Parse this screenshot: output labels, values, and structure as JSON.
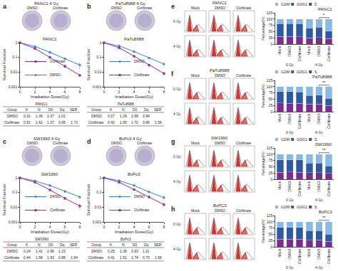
{
  "chart_data": [
    {
      "type": "line",
      "panel": "a",
      "image_title": "PANC1 4 Gy",
      "image_labels": [
        "DMSO",
        "Clofibrate"
      ],
      "title": "PANC1",
      "x": [
        0,
        2,
        4,
        6,
        8
      ],
      "series": [
        {
          "name": "DMSO",
          "color": "#3b7dd8",
          "marker": "circle",
          "values": [
            1,
            0.55,
            0.22,
            0.08,
            0.03
          ],
          "errors": [
            0,
            0.05,
            0.02,
            0.01,
            0.012
          ]
        },
        {
          "name": "Clofibrate",
          "color": "#8e2c9c",
          "marker": "square",
          "values": [
            1,
            0.4,
            0.1,
            0.025,
            0.006
          ],
          "errors": [
            0,
            0.04,
            0.01,
            0.004,
            0.001
          ]
        }
      ],
      "xlabel": "Irradiation Dose(Gy)",
      "ylabel": "Survival Fraction",
      "xlim": [
        0,
        8
      ],
      "xticks": [
        0,
        2,
        4,
        6,
        8
      ],
      "ylim": [
        0.001,
        1
      ],
      "yticks": [
        0.001,
        0.01,
        0.1,
        1
      ],
      "log": "y",
      "legend": "lower left",
      "table": {
        "title": "PANC1",
        "header": [
          "Group",
          "K",
          "N",
          "D0",
          "Dq",
          "SER"
        ],
        "rows": [
          [
            "DMSO",
            "0.31",
            "1.39",
            "2.37",
            "1.01"
          ],
          [
            "Clofibrate",
            "0.51",
            "1.62",
            "1.37",
            "0.65",
            "1.73"
          ]
        ]
      }
    },
    {
      "type": "line",
      "panel": "b",
      "image_title": "PaTu8988 4 Gy",
      "image_labels": [
        "DMSO",
        "Clofibrate"
      ],
      "title": "PaTu8988",
      "x": [
        0,
        2,
        4,
        6,
        8
      ],
      "series": [
        {
          "name": "DMSO",
          "color": "#3b7dd8",
          "marker": "circle",
          "values": [
            1,
            0.6,
            0.25,
            0.09,
            0.035
          ],
          "errors": [
            0,
            0.05,
            0.02,
            0.01,
            0.006
          ]
        },
        {
          "name": "Clofibrate",
          "color": "#8e2c9c",
          "marker": "square",
          "values": [
            1,
            0.45,
            0.12,
            0.03,
            0.008
          ],
          "errors": [
            0,
            0.04,
            0.01,
            0.004,
            0.002
          ]
        }
      ],
      "xlabel": "Irradiation Dose(Gy)",
      "ylabel": "Survival Fraction",
      "xlim": [
        0,
        8
      ],
      "xticks": [
        0,
        2,
        4,
        6,
        8
      ],
      "ylim": [
        0.001,
        1
      ],
      "yticks": [
        0.001,
        0.01,
        0.1,
        1
      ],
      "log": "y",
      "legend": "lower left",
      "table": {
        "title": "PaTu8988",
        "header": [
          "Group",
          "K",
          "N",
          "D0",
          "Dq",
          "SER"
        ],
        "rows": [
          [
            "DMSO",
            "0.27",
            "1.29",
            "2.68",
            "0.94"
          ],
          [
            "Clofibrate",
            "0.42",
            "1.65",
            "1.72",
            "0.86",
            "1.56"
          ]
        ]
      }
    },
    {
      "type": "line",
      "panel": "c",
      "image_title": "SW1990 4 Gy",
      "image_labels": [
        "DMSO",
        "Clofibrate"
      ],
      "title": "SW1990",
      "x": [
        0,
        2,
        4,
        6,
        8
      ],
      "series": [
        {
          "name": "DMSO",
          "color": "#3b7dd8",
          "marker": "circle",
          "values": [
            1,
            0.62,
            0.3,
            0.12,
            0.05
          ],
          "errors": [
            0,
            0.05,
            0.03,
            0.015,
            0.01
          ]
        },
        {
          "name": "Clofibrate",
          "color": "#8e2c9c",
          "marker": "square",
          "values": [
            1,
            0.5,
            0.15,
            0.04,
            0.012
          ],
          "errors": [
            0,
            0.04,
            0.015,
            0.005,
            0.003
          ]
        }
      ],
      "xlabel": "Irradiation Dose(Gy)",
      "ylabel": "Survival Fraction",
      "xlim": [
        0,
        8
      ],
      "xticks": [
        0,
        2,
        4,
        6,
        8
      ],
      "ylim": [
        0.001,
        1
      ],
      "yticks": [
        0.001,
        0.01,
        0.1,
        1
      ],
      "log": "y",
      "legend": "lower left",
      "table": {
        "title": "SW1990",
        "header": [
          "Group",
          "K",
          "N",
          "D0",
          "Dq",
          "SER"
        ],
        "rows": [
          [
            "DMSO",
            "0.24",
            "1.41",
            "2.98",
            "1.23"
          ],
          [
            "Clofibrate",
            "0.44",
            "1.58",
            "1.93",
            "0.88",
            "1.54"
          ]
        ]
      }
    },
    {
      "type": "line",
      "panel": "d",
      "image_title": "BxPc3 4 Gy",
      "image_labels": [
        "DMSO",
        "Clofibrate"
      ],
      "title": "BxPc3",
      "x": [
        0,
        2,
        4,
        6,
        8
      ],
      "series": [
        {
          "name": "DMSO",
          "color": "#3b7dd8",
          "marker": "circle",
          "values": [
            1,
            0.65,
            0.3,
            0.11,
            0.045
          ],
          "errors": [
            0,
            0.05,
            0.03,
            0.01,
            0.008
          ]
        },
        {
          "name": "Clofibrate",
          "color": "#8e2c9c",
          "marker": "square",
          "values": [
            1,
            0.5,
            0.16,
            0.05,
            0.015
          ],
          "errors": [
            0,
            0.04,
            0.015,
            0.006,
            0.003
          ]
        }
      ],
      "xlabel": "Irradiation Dose(Gy)",
      "ylabel": "Survival Fraction",
      "xlim": [
        0,
        8
      ],
      "xticks": [
        0,
        2,
        4,
        6,
        8
      ],
      "ylim": [
        0.001,
        1
      ],
      "yticks": [
        0.001,
        0.01,
        0.1,
        1
      ],
      "log": "y",
      "legend": "lower left",
      "table": {
        "title": "BxPc3",
        "header": [
          "Group",
          "K",
          "N",
          "D0",
          "Dq",
          "SER"
        ],
        "rows": [
          [
            "DMSO",
            "0.25",
            "1.36",
            "2.93",
            "1.11"
          ],
          [
            "Clofibrate",
            "0.41",
            "1.51",
            "1.74",
            "0.70",
            "1.68"
          ]
        ]
      }
    },
    {
      "type": "bar",
      "panel": "e",
      "flow": {
        "title": "PANC1",
        "columns": [
          "Mock",
          "DMSO",
          "Clofibrate"
        ],
        "rows": [
          "0 Gy",
          "4 Gy"
        ]
      },
      "title": "PANC1",
      "categories": [
        "Mock",
        "DMSO",
        "Clofibrate",
        "Mock",
        "DMSO",
        "Clofibrate"
      ],
      "groups": [
        "0 Gy",
        "4 Gy"
      ],
      "series": [
        {
          "name": "S",
          "color": "#7b2d8e",
          "values": [
            30,
            31,
            29,
            25,
            26,
            22
          ]
        },
        {
          "name": "G0/G1",
          "color": "#2d5aa0",
          "values": [
            52,
            50,
            52,
            40,
            41,
            30
          ]
        },
        {
          "name": "G2/M",
          "color": "#86b9e3",
          "values": [
            18,
            19,
            19,
            35,
            33,
            48
          ]
        }
      ],
      "ylabel": "Percentage(%)",
      "ylim": [
        0,
        125
      ],
      "yticks": [
        0,
        25,
        50,
        75,
        100,
        125
      ],
      "stacked": true,
      "legend": "top",
      "significance": [
        {
          "from": 4,
          "to": 5,
          "y": 106,
          "text": "*"
        }
      ]
    },
    {
      "type": "bar",
      "panel": "f",
      "flow": {
        "title": "PaTu8988",
        "columns": [
          "Mock",
          "DMSO",
          "Clofibrate"
        ],
        "rows": [
          "0 Gy",
          "4 Gy"
        ]
      },
      "title": "PaTu8988",
      "categories": [
        "Mock",
        "DMSO",
        "Clofibrate",
        "Mock",
        "DMSO",
        "Clofibrate"
      ],
      "groups": [
        "0 Gy",
        "4 Gy"
      ],
      "series": [
        {
          "name": "S",
          "color": "#7b2d8e",
          "values": [
            35,
            34,
            33,
            30,
            30,
            25
          ]
        },
        {
          "name": "G0/G1",
          "color": "#2d5aa0",
          "values": [
            45,
            46,
            46,
            35,
            36,
            28
          ]
        },
        {
          "name": "G2/M",
          "color": "#86b9e3",
          "values": [
            20,
            20,
            21,
            35,
            34,
            47
          ]
        }
      ],
      "ylabel": "Percentage(%)",
      "ylim": [
        0,
        125
      ],
      "yticks": [
        0,
        25,
        50,
        75,
        100,
        125
      ],
      "stacked": true,
      "legend": "top",
      "significance": [
        {
          "from": 4,
          "to": 5,
          "y": 106,
          "text": "**"
        }
      ]
    },
    {
      "type": "bar",
      "panel": "g",
      "flow": {
        "title": "SW1990",
        "columns": [
          "Mock",
          "DMSO",
          "Clofibrate"
        ],
        "rows": [
          "0 Gy",
          "4 Gy"
        ]
      },
      "title": "SW1990",
      "categories": [
        "Mock",
        "DMSO",
        "Clofibrate",
        "Mock",
        "DMSO",
        "Clofibrate"
      ],
      "groups": [
        "0 Gy",
        "4 Gy"
      ],
      "series": [
        {
          "name": "S",
          "color": "#7b2d8e",
          "values": [
            28,
            29,
            28,
            26,
            27,
            23
          ]
        },
        {
          "name": "G0/G1",
          "color": "#2d5aa0",
          "values": [
            50,
            49,
            50,
            38,
            38,
            30
          ]
        },
        {
          "name": "G2/M",
          "color": "#86b9e3",
          "values": [
            22,
            22,
            22,
            36,
            35,
            47
          ]
        }
      ],
      "ylabel": "Percentage(%)",
      "ylim": [
        0,
        125
      ],
      "yticks": [
        0,
        25,
        50,
        75,
        100,
        125
      ],
      "stacked": true,
      "legend": "top",
      "significance": [
        {
          "from": 4,
          "to": 5,
          "y": 106,
          "text": "**"
        }
      ]
    },
    {
      "type": "bar",
      "panel": "h",
      "flow": {
        "title": "BxPC3",
        "columns": [
          "Mock",
          "DMSO",
          "Clofibrate"
        ],
        "rows": [
          "0 Gy",
          "4 Gy"
        ]
      },
      "title": "BxPC3",
      "categories": [
        "Mock",
        "DMSO",
        "Clofibrate",
        "Mock",
        "DMSO",
        "Clofibrate"
      ],
      "groups": [
        "0 Gy",
        "4 Gy"
      ],
      "series": [
        {
          "name": "S",
          "color": "#7b2d8e",
          "values": [
            30,
            30,
            31,
            27,
            28,
            22
          ]
        },
        {
          "name": "G0/G1",
          "color": "#2d5aa0",
          "values": [
            48,
            48,
            47,
            37,
            37,
            28
          ]
        },
        {
          "name": "G2/M",
          "color": "#86b9e3",
          "values": [
            22,
            22,
            22,
            36,
            35,
            50
          ]
        }
      ],
      "ylabel": "Percentage(%)",
      "ylim": [
        0,
        125
      ],
      "yticks": [
        0,
        25,
        50,
        75,
        100,
        125
      ],
      "stacked": true,
      "legend": "top",
      "significance": [
        {
          "from": 4,
          "to": 5,
          "y": 106,
          "text": "**"
        }
      ]
    }
  ]
}
